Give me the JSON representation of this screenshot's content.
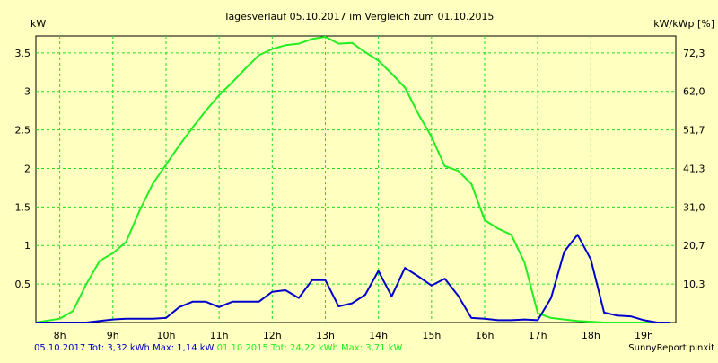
{
  "chart_data": {
    "type": "line",
    "title": "Tagesverlauf 05.10.2017 im Vergleich zum 01.10.2015",
    "ylabel_left": "kW",
    "ylabel_right": "kW/kWp [%]",
    "x_ticks": [
      "8h",
      "9h",
      "10h",
      "11h",
      "12h",
      "13h",
      "14h",
      "15h",
      "16h",
      "17h",
      "18h",
      "19h"
    ],
    "x_range": [
      7.55,
      19.6
    ],
    "ylim": [
      0,
      3.72
    ],
    "y_ticks_left": [
      "0.5",
      "1",
      "1.5",
      "2",
      "2.5",
      "3",
      "3.5"
    ],
    "y_ticks_right": [
      "10,3",
      "20,7",
      "31,0",
      "41,3",
      "51,7",
      "62,0",
      "72,3"
    ],
    "grid": true,
    "series": [
      {
        "name": "05.10.2017",
        "color": "#0000cc",
        "x": [
          7.55,
          8.0,
          8.5,
          8.75,
          9.0,
          9.25,
          9.5,
          9.75,
          10.0,
          10.25,
          10.5,
          10.75,
          11.0,
          11.25,
          11.5,
          11.75,
          12.0,
          12.25,
          12.5,
          12.75,
          13.0,
          13.25,
          13.5,
          13.75,
          14.0,
          14.25,
          14.5,
          14.75,
          15.0,
          15.25,
          15.5,
          15.75,
          16.0,
          16.25,
          16.5,
          16.75,
          17.0,
          17.25,
          17.5,
          17.75,
          18.0,
          18.25,
          18.5,
          18.75,
          19.0,
          19.25,
          19.5
        ],
        "values": [
          0.0,
          0.0,
          0.0,
          0.02,
          0.04,
          0.05,
          0.05,
          0.05,
          0.06,
          0.2,
          0.27,
          0.27,
          0.2,
          0.27,
          0.27,
          0.27,
          0.4,
          0.42,
          0.32,
          0.55,
          0.55,
          0.21,
          0.25,
          0.36,
          0.67,
          0.34,
          0.71,
          0.6,
          0.48,
          0.57,
          0.35,
          0.06,
          0.05,
          0.03,
          0.03,
          0.04,
          0.03,
          0.32,
          0.92,
          1.14,
          0.82,
          0.13,
          0.09,
          0.08,
          0.03,
          0.0,
          0.0
        ]
      },
      {
        "name": "01.10.2015",
        "color": "#22ee22",
        "x": [
          7.55,
          8.0,
          8.25,
          8.5,
          8.75,
          9.0,
          9.25,
          9.5,
          9.75,
          10.0,
          10.25,
          10.5,
          10.75,
          11.0,
          11.25,
          11.5,
          11.75,
          12.0,
          12.25,
          12.5,
          12.75,
          13.0,
          13.25,
          13.5,
          13.75,
          14.0,
          14.25,
          14.5,
          14.75,
          15.0,
          15.25,
          15.5,
          15.75,
          16.0,
          16.25,
          16.5,
          16.75,
          17.0,
          17.25,
          17.5,
          17.75,
          18.0,
          18.25,
          18.5,
          18.75,
          19.0,
          19.25,
          19.5
        ],
        "values": [
          0.0,
          0.05,
          0.15,
          0.5,
          0.8,
          0.9,
          1.05,
          1.45,
          1.8,
          2.05,
          2.3,
          2.53,
          2.75,
          2.95,
          3.12,
          3.3,
          3.47,
          3.55,
          3.6,
          3.62,
          3.68,
          3.71,
          3.62,
          3.63,
          3.51,
          3.4,
          3.23,
          3.05,
          2.71,
          2.41,
          2.03,
          1.97,
          1.8,
          1.33,
          1.22,
          1.14,
          0.78,
          0.12,
          0.06,
          0.04,
          0.02,
          0.01,
          0.0,
          0.0,
          0.0,
          0.0,
          0.0,
          0.0
        ]
      }
    ]
  },
  "footer": {
    "series1": {
      "text": "05.10.2017 Tot: 3,32 kWh Max: 1,14 kW",
      "color": "#0000cc"
    },
    "series2": {
      "text": "01.10.2015 Tot: 24,22 kWh Max: 3,71 kW",
      "color": "#22ee22"
    },
    "credit": "SunnyReport pinxit"
  }
}
